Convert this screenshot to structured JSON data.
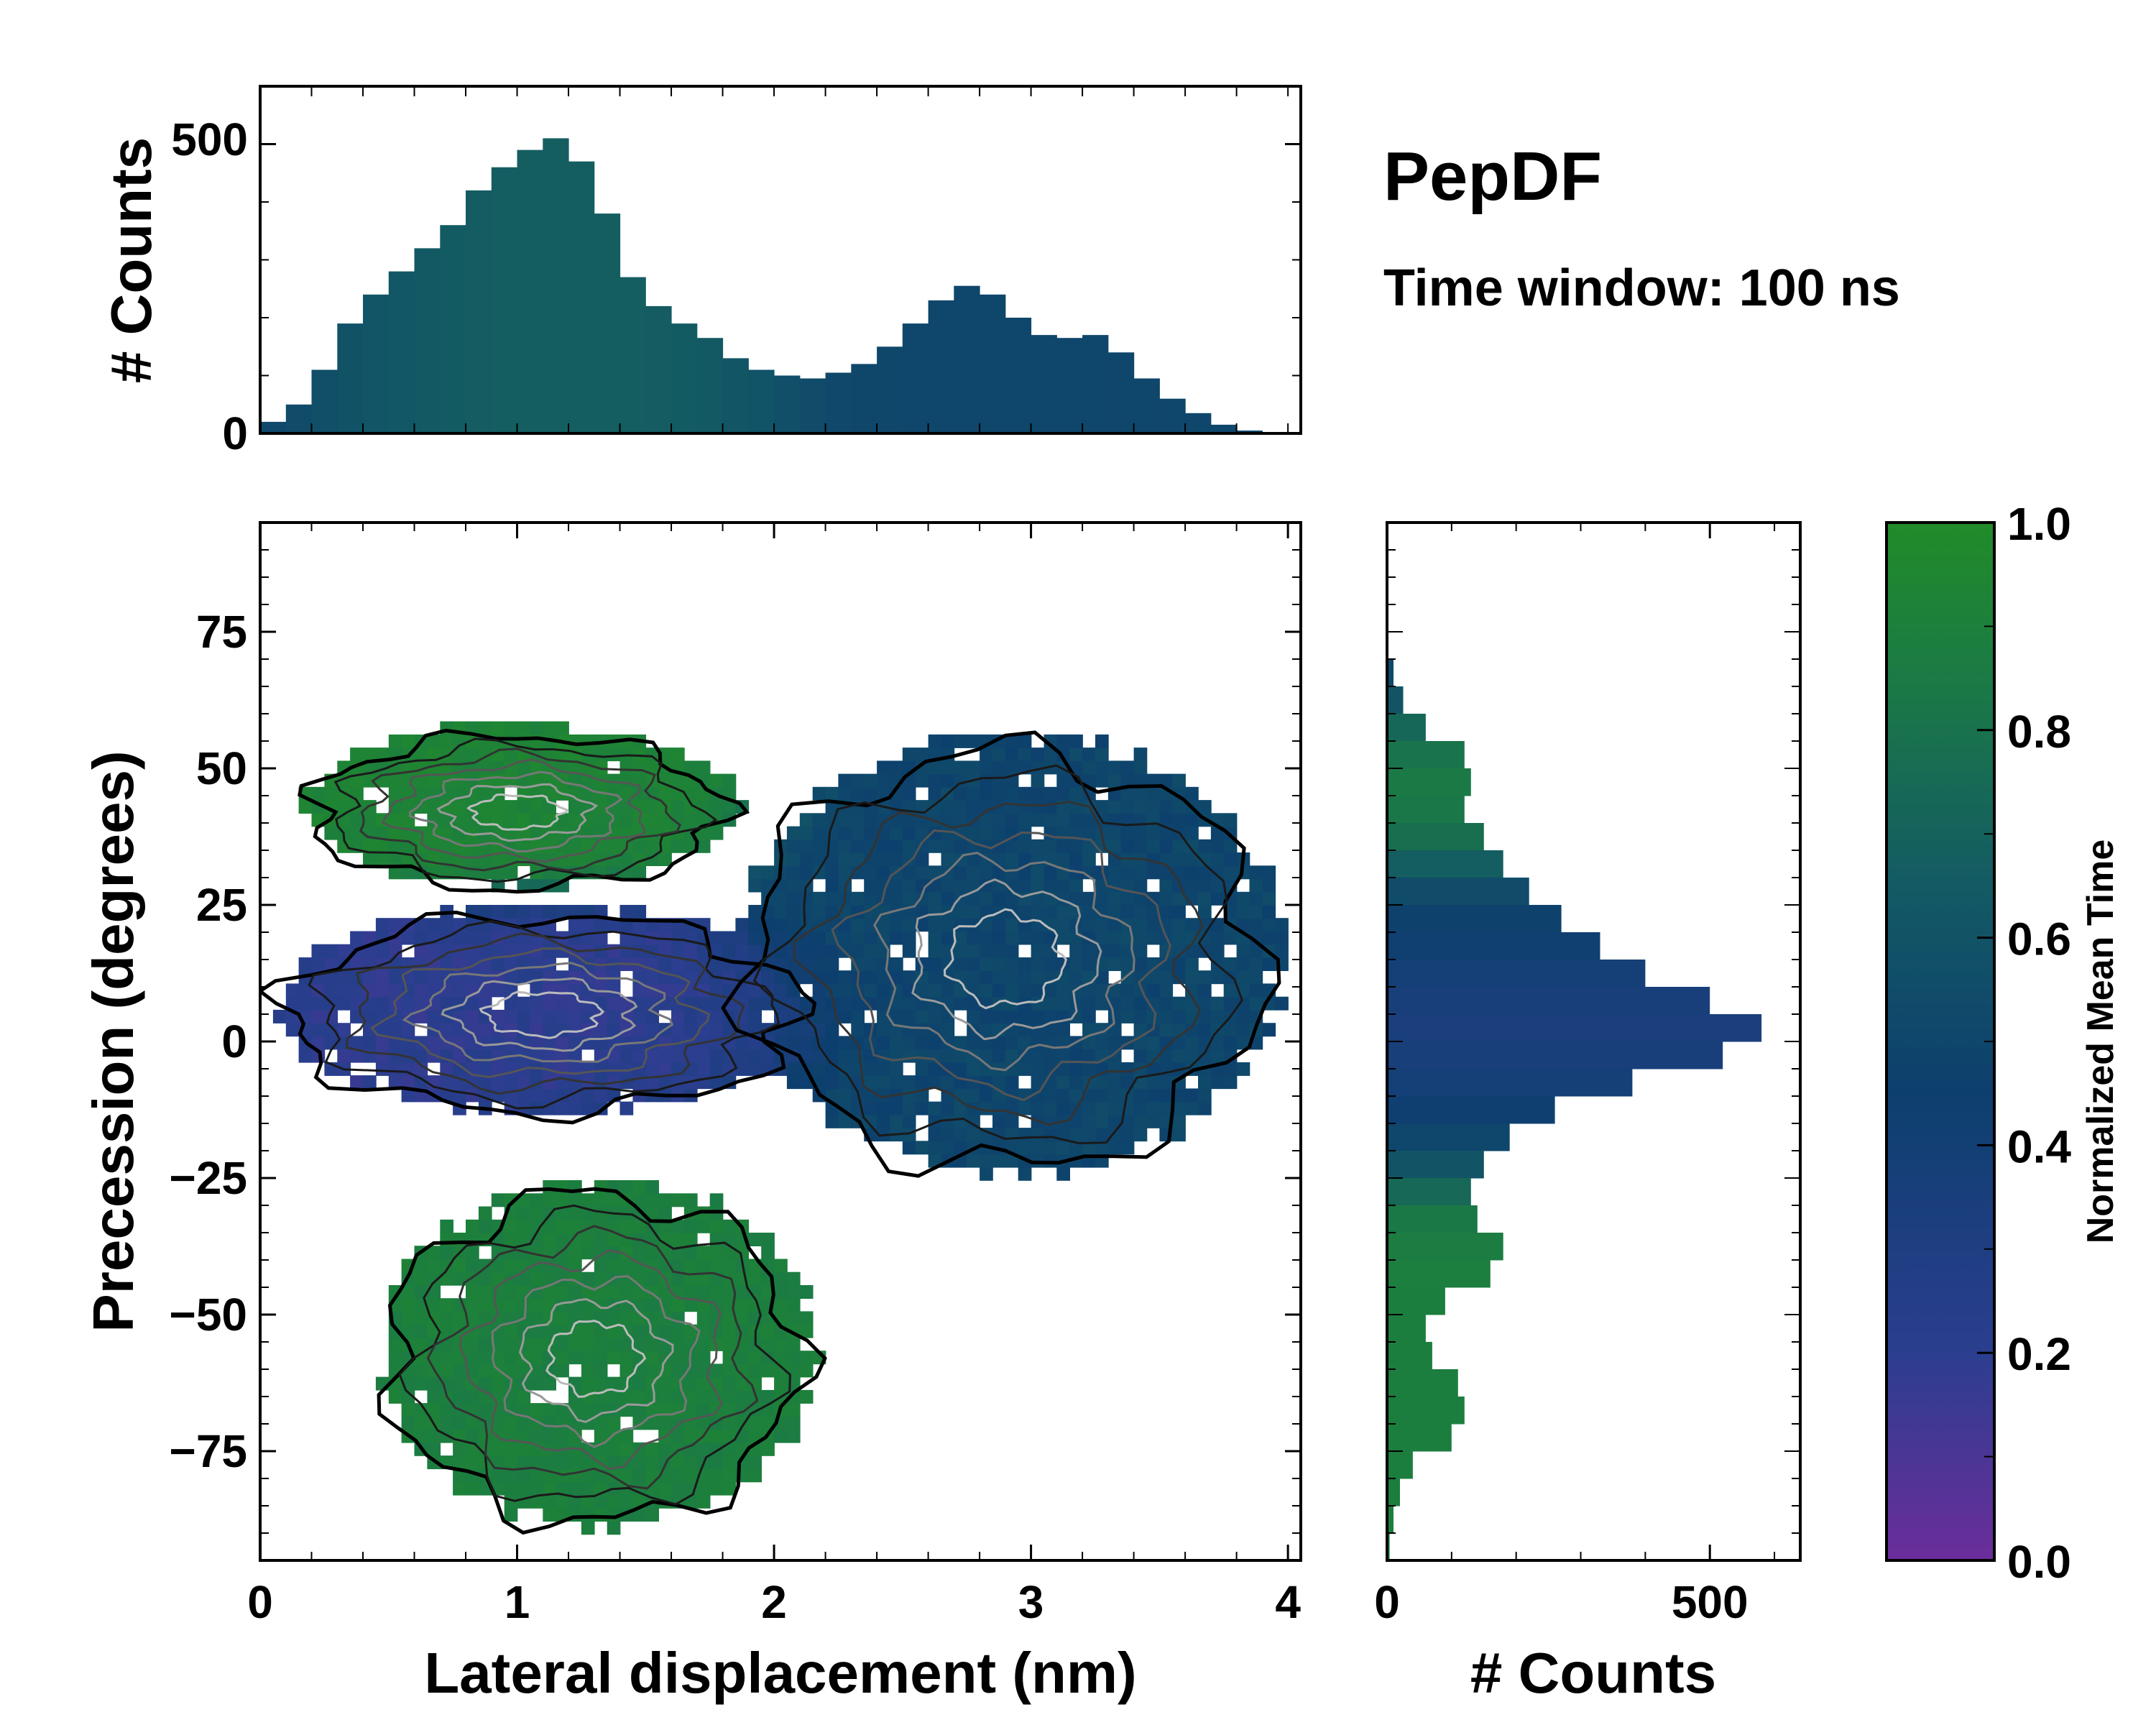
{
  "chart_data": {
    "type": "heatmap",
    "title": "PepDF",
    "subtitle": "Time window: 100 ns",
    "main": {
      "xlabel": "Lateral displacement (nm)",
      "ylabel": "Precession (degrees)",
      "xlim": [
        0,
        4.05
      ],
      "ylim": [
        -95,
        95
      ],
      "xticks": [
        0,
        1,
        2,
        3,
        4
      ],
      "xtick_labels": [
        "0",
        "1",
        "2",
        "3",
        "4"
      ],
      "yticks": [
        75,
        50,
        25,
        0,
        -25,
        -50,
        -75
      ],
      "ytick_labels": [
        "75",
        "50",
        "25",
        "0",
        "−25",
        "−50",
        "−75"
      ],
      "color_by": "Normalized Mean Time",
      "clusters": [
        {
          "name": "purple band",
          "x_center": 1.1,
          "y_center": 5,
          "x_halfwidth": 1.0,
          "y_halfwidth": 18,
          "time": 0.2
        },
        {
          "name": "green upper-left",
          "x_center": 1.0,
          "y_center": 42,
          "x_halfwidth": 0.8,
          "y_halfwidth": 14,
          "time": 0.9
        },
        {
          "name": "green lower",
          "x_center": 1.3,
          "y_center": -58,
          "x_halfwidth": 0.8,
          "y_halfwidth": 30,
          "time": 0.85
        },
        {
          "name": "blue right",
          "x_center": 2.9,
          "y_center": 15,
          "x_halfwidth": 1.0,
          "y_halfwidth": 38,
          "time": 0.45
        }
      ]
    },
    "top_histogram": {
      "ylabel": "# Counts",
      "ylim": [
        0,
        600
      ],
      "yticks": [
        500,
        0
      ],
      "ytick_labels": [
        "500",
        "0"
      ],
      "x": [
        0.05,
        0.15,
        0.25,
        0.35,
        0.45,
        0.55,
        0.65,
        0.75,
        0.85,
        0.95,
        1.05,
        1.15,
        1.25,
        1.35,
        1.45,
        1.55,
        1.65,
        1.75,
        1.85,
        1.95,
        2.05,
        2.15,
        2.25,
        2.35,
        2.45,
        2.55,
        2.65,
        2.75,
        2.85,
        2.95,
        3.05,
        3.15,
        3.25,
        3.35,
        3.45,
        3.55,
        3.65,
        3.75,
        3.85,
        3.95
      ],
      "values": [
        20,
        50,
        110,
        190,
        240,
        280,
        320,
        360,
        420,
        460,
        490,
        510,
        470,
        380,
        270,
        220,
        190,
        165,
        130,
        110,
        100,
        95,
        105,
        120,
        150,
        190,
        230,
        255,
        240,
        200,
        170,
        165,
        170,
        140,
        95,
        60,
        35,
        15,
        5,
        2
      ]
    },
    "right_histogram": {
      "xlabel": "# Counts",
      "xlim": [
        0,
        640
      ],
      "xticks": [
        0,
        500
      ],
      "xtick_labels": [
        "0",
        "500"
      ],
      "y": [
        67.5,
        62.5,
        57.5,
        52.5,
        47.5,
        42.5,
        37.5,
        32.5,
        27.5,
        22.5,
        17.5,
        12.5,
        7.5,
        2.5,
        -2.5,
        -7.5,
        -12.5,
        -17.5,
        -22.5,
        -27.5,
        -32.5,
        -37.5,
        -42.5,
        -47.5,
        -52.5,
        -57.5,
        -62.5,
        -67.5,
        -72.5,
        -77.5,
        -82.5,
        -87.5,
        -92.5
      ],
      "values": [
        10,
        25,
        60,
        120,
        130,
        120,
        150,
        180,
        220,
        270,
        330,
        400,
        500,
        580,
        520,
        380,
        260,
        190,
        150,
        130,
        140,
        180,
        160,
        90,
        60,
        70,
        110,
        120,
        100,
        40,
        20,
        10,
        4
      ]
    },
    "colorbar": {
      "label": "Normalized Mean Time",
      "range": [
        0.0,
        1.0
      ],
      "ticks": [
        1.0,
        0.8,
        0.6,
        0.4,
        0.2,
        0.0
      ],
      "tick_labels": [
        "1.0",
        "0.8",
        "0.6",
        "0.4",
        "0.2",
        "0.0"
      ],
      "colors": [
        "#6b2d9b",
        "#2b3e8f",
        "#0d3f6e",
        "#135a64",
        "#1b7a45",
        "#218b28"
      ]
    }
  }
}
